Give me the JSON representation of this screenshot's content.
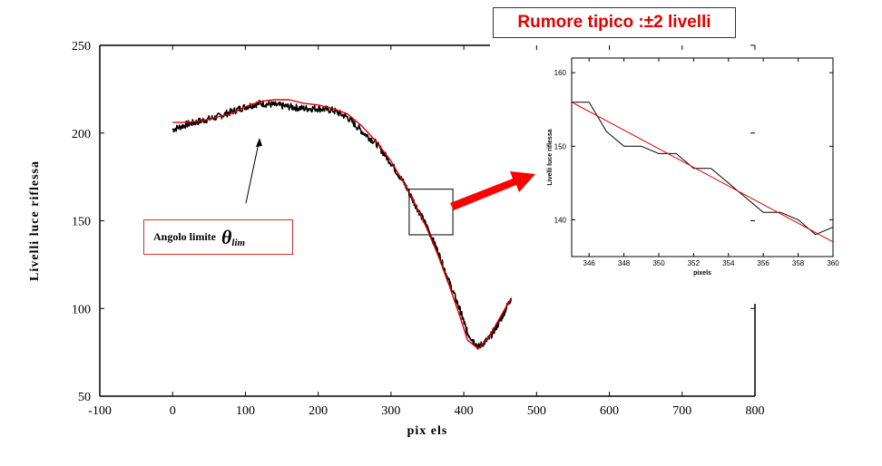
{
  "annotations": {
    "noise_label": "Rumore tipico :±2 livelli",
    "angle_label": "Angolo limite",
    "angle_symbol": "θ",
    "angle_subscript": "lim"
  },
  "chart_data": [
    {
      "type": "line",
      "xlabel": "pix els",
      "ylabel": "Livelli  luce riflessa",
      "xlim": [
        -100,
        800
      ],
      "ylim": [
        50,
        250
      ],
      "xticks": [
        "-100",
        "0",
        "100",
        "200",
        "300",
        "400",
        "500",
        "600",
        "700",
        "800"
      ],
      "yticks": [
        "50",
        "100",
        "150",
        "200",
        "250"
      ],
      "series": [
        {
          "color": "#000000",
          "x": [
            0,
            20,
            40,
            60,
            80,
            100,
            120,
            140,
            160,
            180,
            200,
            220,
            240,
            260,
            280,
            300,
            320,
            335,
            350,
            365,
            380,
            395,
            405,
            420,
            435,
            450,
            465
          ],
          "y": [
            202,
            205,
            207,
            209,
            212,
            215,
            217,
            216,
            215,
            214,
            214,
            213,
            209,
            201,
            194,
            183,
            170,
            158,
            146,
            132,
            115,
            99,
            86,
            78,
            83,
            93,
            106
          ]
        },
        {
          "color": "#e00000",
          "x": [
            0,
            20,
            40,
            60,
            80,
            100,
            120,
            140,
            160,
            180,
            200,
            220,
            240,
            260,
            280,
            300,
            320,
            335,
            350,
            365,
            380,
            395,
            405,
            420,
            435,
            450,
            465
          ],
          "y": [
            206,
            206,
            207,
            209,
            211,
            215,
            218,
            219,
            219,
            217,
            216,
            214,
            211,
            204,
            195,
            184,
            170,
            158,
            145,
            130,
            113,
            95,
            82,
            77,
            84,
            95,
            106
          ]
        }
      ]
    },
    {
      "type": "line",
      "xlabel": "pixels",
      "ylabel": "Livelli  luce riflessa",
      "xlim": [
        345,
        360
      ],
      "ylim": [
        135,
        162
      ],
      "xticks": [
        "346",
        "348",
        "350",
        "352",
        "354",
        "356",
        "358",
        "360"
      ],
      "yticks": [
        "140",
        "150",
        "160"
      ],
      "series": [
        {
          "color": "#000000",
          "x": [
            345,
            346,
            347,
            348,
            349,
            350,
            351,
            352,
            353,
            354,
            355,
            356,
            357,
            358,
            359,
            360
          ],
          "y": [
            156,
            156,
            152,
            150,
            150,
            149,
            149,
            147,
            147,
            145,
            143,
            141,
            141,
            140,
            138,
            139
          ]
        },
        {
          "color": "#e00000",
          "x": [
            345,
            360
          ],
          "y": [
            156,
            137
          ]
        }
      ]
    }
  ]
}
